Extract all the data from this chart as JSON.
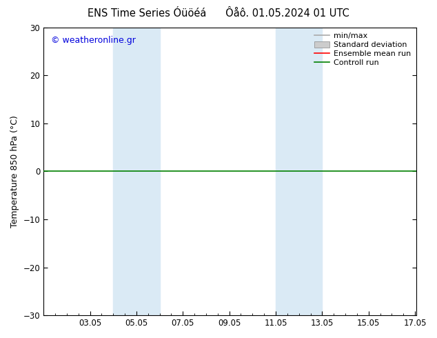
{
  "title": "ENS Time Series Óüöéá      Ôåô. 01.05.2024 01 UTC",
  "ylabel": "Temperature 850 hPa (°C)",
  "ylim": [
    -30,
    30
  ],
  "yticks": [
    -30,
    -20,
    -10,
    0,
    10,
    20,
    30
  ],
  "xlim": [
    1.0,
    17.05
  ],
  "xtick_labels": [
    "03.05",
    "05.05",
    "07.05",
    "09.05",
    "11.05",
    "13.05",
    "15.05",
    "17.05"
  ],
  "xtick_positions": [
    3,
    5,
    7,
    9,
    11,
    13,
    15,
    17
  ],
  "blue_bands": [
    {
      "start": 4.0,
      "end": 6.0
    },
    {
      "start": 11.0,
      "end": 13.0
    }
  ],
  "blue_band_color": "#daeaf5",
  "watermark": "© weatheronline.gr",
  "watermark_color": "#0000dd",
  "background_color": "#ffffff",
  "plot_bg_color": "#ffffff",
  "zero_line_color": "#008000",
  "zero_line_lw": 1.2,
  "title_fontsize": 10.5,
  "tick_fontsize": 8.5,
  "legend_fontsize": 8,
  "ylabel_fontsize": 9,
  "watermark_fontsize": 9,
  "legend_items": [
    {
      "label": "min/max",
      "color": "#aaaaaa",
      "lw": 1.2
    },
    {
      "label": "Standard deviation",
      "color": "#cccccc",
      "lw": 5
    },
    {
      "label": "Ensemble mean run",
      "color": "#ff0000",
      "lw": 1.2
    },
    {
      "label": "Controll run",
      "color": "#008000",
      "lw": 1.2
    }
  ]
}
